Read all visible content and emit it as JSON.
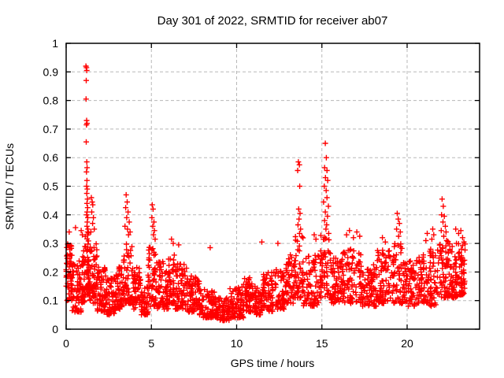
{
  "chart_data": {
    "type": "scatter",
    "title": "Day 301 of 2022, SRMTID for receiver ab07",
    "xlabel": "GPS time / hours",
    "ylabel": "SRMTID / TECUs",
    "xlim": [
      0,
      24.25
    ],
    "ylim": [
      0,
      1
    ],
    "xticks": [
      0,
      5,
      10,
      15,
      20
    ],
    "yticks": [
      0,
      0.1,
      0.2,
      0.3,
      0.4,
      0.5,
      0.6,
      0.7,
      0.8,
      0.9,
      1
    ],
    "grid": true,
    "grid_style": "dashed",
    "grid_color": "#b8b8b8",
    "border_color": "#000000",
    "marker": "plus",
    "marker_color": "#ff0000",
    "marker_size": 7,
    "legend": "none",
    "seed": 12345,
    "band_segments_comment": "dense scatter band: [x_start, x_end, y_min, y_max, point_count]",
    "band_segments": [
      [
        0.0,
        0.35,
        0.1,
        0.3,
        55
      ],
      [
        0.35,
        0.9,
        0.06,
        0.24,
        60
      ],
      [
        0.9,
        1.1,
        0.09,
        0.28,
        30
      ],
      [
        1.1,
        1.35,
        0.12,
        0.34,
        45
      ],
      [
        1.35,
        1.8,
        0.09,
        0.3,
        55
      ],
      [
        1.8,
        2.4,
        0.06,
        0.22,
        65
      ],
      [
        2.4,
        2.9,
        0.05,
        0.18,
        55
      ],
      [
        2.9,
        3.3,
        0.07,
        0.23,
        50
      ],
      [
        3.3,
        3.9,
        0.09,
        0.3,
        60
      ],
      [
        3.9,
        4.4,
        0.07,
        0.22,
        55
      ],
      [
        4.4,
        4.8,
        0.05,
        0.16,
        40
      ],
      [
        4.8,
        5.3,
        0.08,
        0.3,
        55
      ],
      [
        5.3,
        6.0,
        0.07,
        0.24,
        70
      ],
      [
        6.0,
        6.4,
        0.09,
        0.26,
        45
      ],
      [
        6.4,
        7.1,
        0.07,
        0.23,
        70
      ],
      [
        7.1,
        7.8,
        0.06,
        0.19,
        70
      ],
      [
        7.8,
        8.8,
        0.04,
        0.14,
        95
      ],
      [
        8.8,
        9.6,
        0.03,
        0.11,
        80
      ],
      [
        9.6,
        10.4,
        0.04,
        0.15,
        80
      ],
      [
        10.4,
        11.0,
        0.06,
        0.18,
        60
      ],
      [
        11.0,
        11.5,
        0.05,
        0.15,
        50
      ],
      [
        11.5,
        12.2,
        0.06,
        0.2,
        65
      ],
      [
        12.2,
        12.8,
        0.07,
        0.21,
        55
      ],
      [
        12.8,
        13.4,
        0.09,
        0.26,
        55
      ],
      [
        13.4,
        13.9,
        0.11,
        0.33,
        45
      ],
      [
        13.9,
        14.8,
        0.08,
        0.26,
        75
      ],
      [
        14.8,
        15.5,
        0.11,
        0.33,
        60
      ],
      [
        15.5,
        16.2,
        0.09,
        0.25,
        65
      ],
      [
        16.2,
        17.3,
        0.09,
        0.28,
        90
      ],
      [
        17.3,
        18.2,
        0.08,
        0.23,
        80
      ],
      [
        18.2,
        19.2,
        0.09,
        0.28,
        85
      ],
      [
        19.2,
        19.7,
        0.09,
        0.3,
        45
      ],
      [
        19.7,
        20.5,
        0.08,
        0.24,
        70
      ],
      [
        20.5,
        21.3,
        0.09,
        0.26,
        70
      ],
      [
        21.3,
        21.8,
        0.08,
        0.28,
        45
      ],
      [
        21.8,
        22.4,
        0.11,
        0.31,
        55
      ],
      [
        22.4,
        23.0,
        0.11,
        0.3,
        60
      ],
      [
        23.0,
        23.4,
        0.12,
        0.31,
        55
      ]
    ],
    "outliers_comment": "individually visible high points [x, y]",
    "outliers": [
      [
        0.18,
        0.34
      ],
      [
        0.55,
        0.355
      ],
      [
        0.88,
        0.345
      ],
      [
        0.95,
        0.33
      ],
      [
        1.16,
        0.92
      ],
      [
        1.19,
        0.915
      ],
      [
        1.21,
        0.905
      ],
      [
        1.18,
        0.87
      ],
      [
        1.17,
        0.805
      ],
      [
        1.2,
        0.73
      ],
      [
        1.23,
        0.72
      ],
      [
        1.19,
        0.715
      ],
      [
        1.18,
        0.655
      ],
      [
        1.21,
        0.585
      ],
      [
        1.23,
        0.565
      ],
      [
        1.19,
        0.55
      ],
      [
        1.22,
        0.52
      ],
      [
        1.2,
        0.5
      ],
      [
        1.24,
        0.49
      ],
      [
        1.21,
        0.475
      ],
      [
        1.25,
        0.455
      ],
      [
        1.22,
        0.44
      ],
      [
        1.26,
        0.425
      ],
      [
        1.23,
        0.41
      ],
      [
        1.2,
        0.4
      ],
      [
        1.27,
        0.39
      ],
      [
        1.24,
        0.375
      ],
      [
        1.22,
        0.36
      ],
      [
        1.28,
        0.35
      ],
      [
        1.25,
        0.34
      ],
      [
        1.48,
        0.46
      ],
      [
        1.53,
        0.445
      ],
      [
        1.56,
        0.435
      ],
      [
        1.5,
        0.41
      ],
      [
        1.6,
        0.39
      ],
      [
        1.55,
        0.37
      ],
      [
        1.65,
        0.35
      ],
      [
        1.45,
        0.34
      ],
      [
        3.52,
        0.47
      ],
      [
        3.58,
        0.445
      ],
      [
        3.49,
        0.425
      ],
      [
        3.63,
        0.41
      ],
      [
        3.55,
        0.39
      ],
      [
        3.7,
        0.375
      ],
      [
        3.45,
        0.36
      ],
      [
        3.6,
        0.35
      ],
      [
        3.75,
        0.34
      ],
      [
        3.66,
        0.33
      ],
      [
        5.05,
        0.435
      ],
      [
        5.1,
        0.42
      ],
      [
        5.03,
        0.39
      ],
      [
        5.15,
        0.375
      ],
      [
        5.08,
        0.36
      ],
      [
        5.18,
        0.345
      ],
      [
        5.12,
        0.33
      ],
      [
        5.22,
        0.315
      ],
      [
        6.18,
        0.315
      ],
      [
        6.28,
        0.3
      ],
      [
        6.6,
        0.295
      ],
      [
        8.45,
        0.285
      ],
      [
        11.48,
        0.305
      ],
      [
        12.42,
        0.3
      ],
      [
        13.62,
        0.585
      ],
      [
        13.68,
        0.575
      ],
      [
        13.58,
        0.555
      ],
      [
        13.7,
        0.5
      ],
      [
        13.64,
        0.42
      ],
      [
        13.72,
        0.405
      ],
      [
        13.66,
        0.385
      ],
      [
        13.6,
        0.365
      ],
      [
        13.75,
        0.35
      ],
      [
        13.69,
        0.335
      ],
      [
        14.55,
        0.33
      ],
      [
        14.65,
        0.315
      ],
      [
        15.2,
        0.65
      ],
      [
        15.26,
        0.6
      ],
      [
        15.16,
        0.565
      ],
      [
        15.3,
        0.555
      ],
      [
        15.21,
        0.53
      ],
      [
        15.34,
        0.52
      ],
      [
        15.14,
        0.5
      ],
      [
        15.25,
        0.485
      ],
      [
        15.3,
        0.46
      ],
      [
        15.1,
        0.445
      ],
      [
        15.38,
        0.43
      ],
      [
        15.2,
        0.41
      ],
      [
        15.33,
        0.395
      ],
      [
        15.16,
        0.38
      ],
      [
        15.28,
        0.365
      ],
      [
        15.24,
        0.35
      ],
      [
        15.4,
        0.335
      ],
      [
        16.45,
        0.33
      ],
      [
        16.62,
        0.345
      ],
      [
        16.85,
        0.32
      ],
      [
        17.05,
        0.34
      ],
      [
        17.22,
        0.325
      ],
      [
        18.55,
        0.32
      ],
      [
        18.72,
        0.305
      ],
      [
        19.42,
        0.405
      ],
      [
        19.48,
        0.385
      ],
      [
        19.55,
        0.37
      ],
      [
        19.38,
        0.35
      ],
      [
        19.6,
        0.34
      ],
      [
        19.5,
        0.325
      ],
      [
        21.1,
        0.31
      ],
      [
        21.18,
        0.335
      ],
      [
        21.5,
        0.35
      ],
      [
        21.56,
        0.33
      ],
      [
        21.45,
        0.315
      ],
      [
        22.05,
        0.455
      ],
      [
        22.12,
        0.43
      ],
      [
        22.02,
        0.4
      ],
      [
        22.18,
        0.395
      ],
      [
        22.1,
        0.375
      ],
      [
        22.24,
        0.36
      ],
      [
        22.0,
        0.345
      ],
      [
        22.28,
        0.34
      ],
      [
        22.15,
        0.325
      ],
      [
        22.32,
        0.31
      ],
      [
        22.85,
        0.35
      ],
      [
        23.02,
        0.335
      ],
      [
        23.15,
        0.345
      ],
      [
        23.25,
        0.32
      ],
      [
        23.33,
        0.305
      ]
    ]
  }
}
